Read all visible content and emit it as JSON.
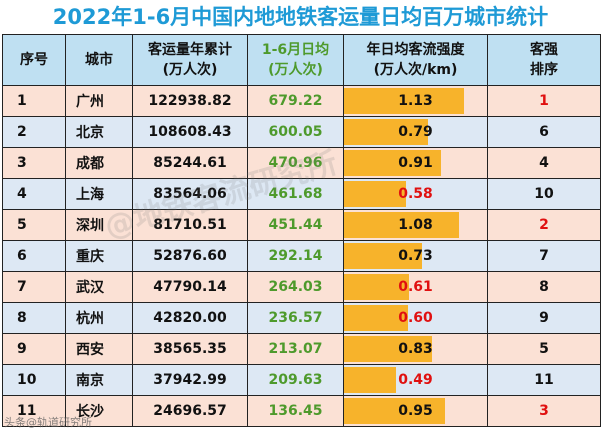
{
  "title": "2022年1-6月中国内地地铁客运量日均百万城市统计",
  "headers": {
    "index": "序号",
    "city": "城市",
    "total": [
      "客运量年累计",
      "(万人次)"
    ],
    "daily": [
      "1-6月日均",
      "(万人次)"
    ],
    "intensity": [
      "年日均客流强度",
      "(万人次/km)"
    ],
    "rank": [
      "客强",
      "排序"
    ]
  },
  "colors": {
    "title": "#1e9ad6",
    "header_bg": "#bfe0f2",
    "row_odd": "#fbe1d5",
    "row_even": "#dde8f4",
    "daily_text": "#4e9a2c",
    "bar": "#f7b32b",
    "highlight": "#e01010"
  },
  "rows": [
    {
      "index": "1",
      "city": "广州",
      "total": "122938.82",
      "daily": "679.22",
      "intensity": "1.13",
      "intensity_value": 1.13,
      "intensity_red": false,
      "rank": "1",
      "rank_red": true
    },
    {
      "index": "2",
      "city": "北京",
      "total": "108608.43",
      "daily": "600.05",
      "intensity": "0.79",
      "intensity_value": 0.79,
      "intensity_red": false,
      "rank": "6",
      "rank_red": false
    },
    {
      "index": "3",
      "city": "成都",
      "total": "85244.61",
      "daily": "470.96",
      "intensity": "0.91",
      "intensity_value": 0.91,
      "intensity_red": false,
      "rank": "4",
      "rank_red": false
    },
    {
      "index": "4",
      "city": "上海",
      "total": "83564.06",
      "daily": "461.68",
      "intensity": "0.58",
      "intensity_value": 0.58,
      "intensity_red": true,
      "rank": "10",
      "rank_red": false
    },
    {
      "index": "5",
      "city": "深圳",
      "total": "81710.51",
      "daily": "451.44",
      "intensity": "1.08",
      "intensity_value": 1.08,
      "intensity_red": false,
      "rank": "2",
      "rank_red": true
    },
    {
      "index": "6",
      "city": "重庆",
      "total": "52876.60",
      "daily": "292.14",
      "intensity": "0.73",
      "intensity_value": 0.73,
      "intensity_red": false,
      "rank": "7",
      "rank_red": false
    },
    {
      "index": "7",
      "city": "武汉",
      "total": "47790.14",
      "daily": "264.03",
      "intensity": "0.61",
      "intensity_value": 0.61,
      "intensity_red": true,
      "rank": "8",
      "rank_red": false
    },
    {
      "index": "8",
      "city": "杭州",
      "total": "42820.00",
      "daily": "236.57",
      "intensity": "0.60",
      "intensity_value": 0.6,
      "intensity_red": true,
      "rank": "9",
      "rank_red": false
    },
    {
      "index": "9",
      "city": "西安",
      "total": "38565.35",
      "daily": "213.07",
      "intensity": "0.83",
      "intensity_value": 0.83,
      "intensity_red": false,
      "rank": "5",
      "rank_red": false
    },
    {
      "index": "10",
      "city": "南京",
      "total": "37942.99",
      "daily": "209.63",
      "intensity": "0.49",
      "intensity_value": 0.49,
      "intensity_red": true,
      "rank": "11",
      "rank_red": false
    },
    {
      "index": "11",
      "city": "长沙",
      "total": "24696.57",
      "daily": "136.45",
      "intensity": "0.95",
      "intensity_value": 0.95,
      "intensity_red": false,
      "rank": "3",
      "rank_red": true
    }
  ],
  "watermarks": [
    "@地铁客流研究所",
    "头条@轨道研究所"
  ]
}
